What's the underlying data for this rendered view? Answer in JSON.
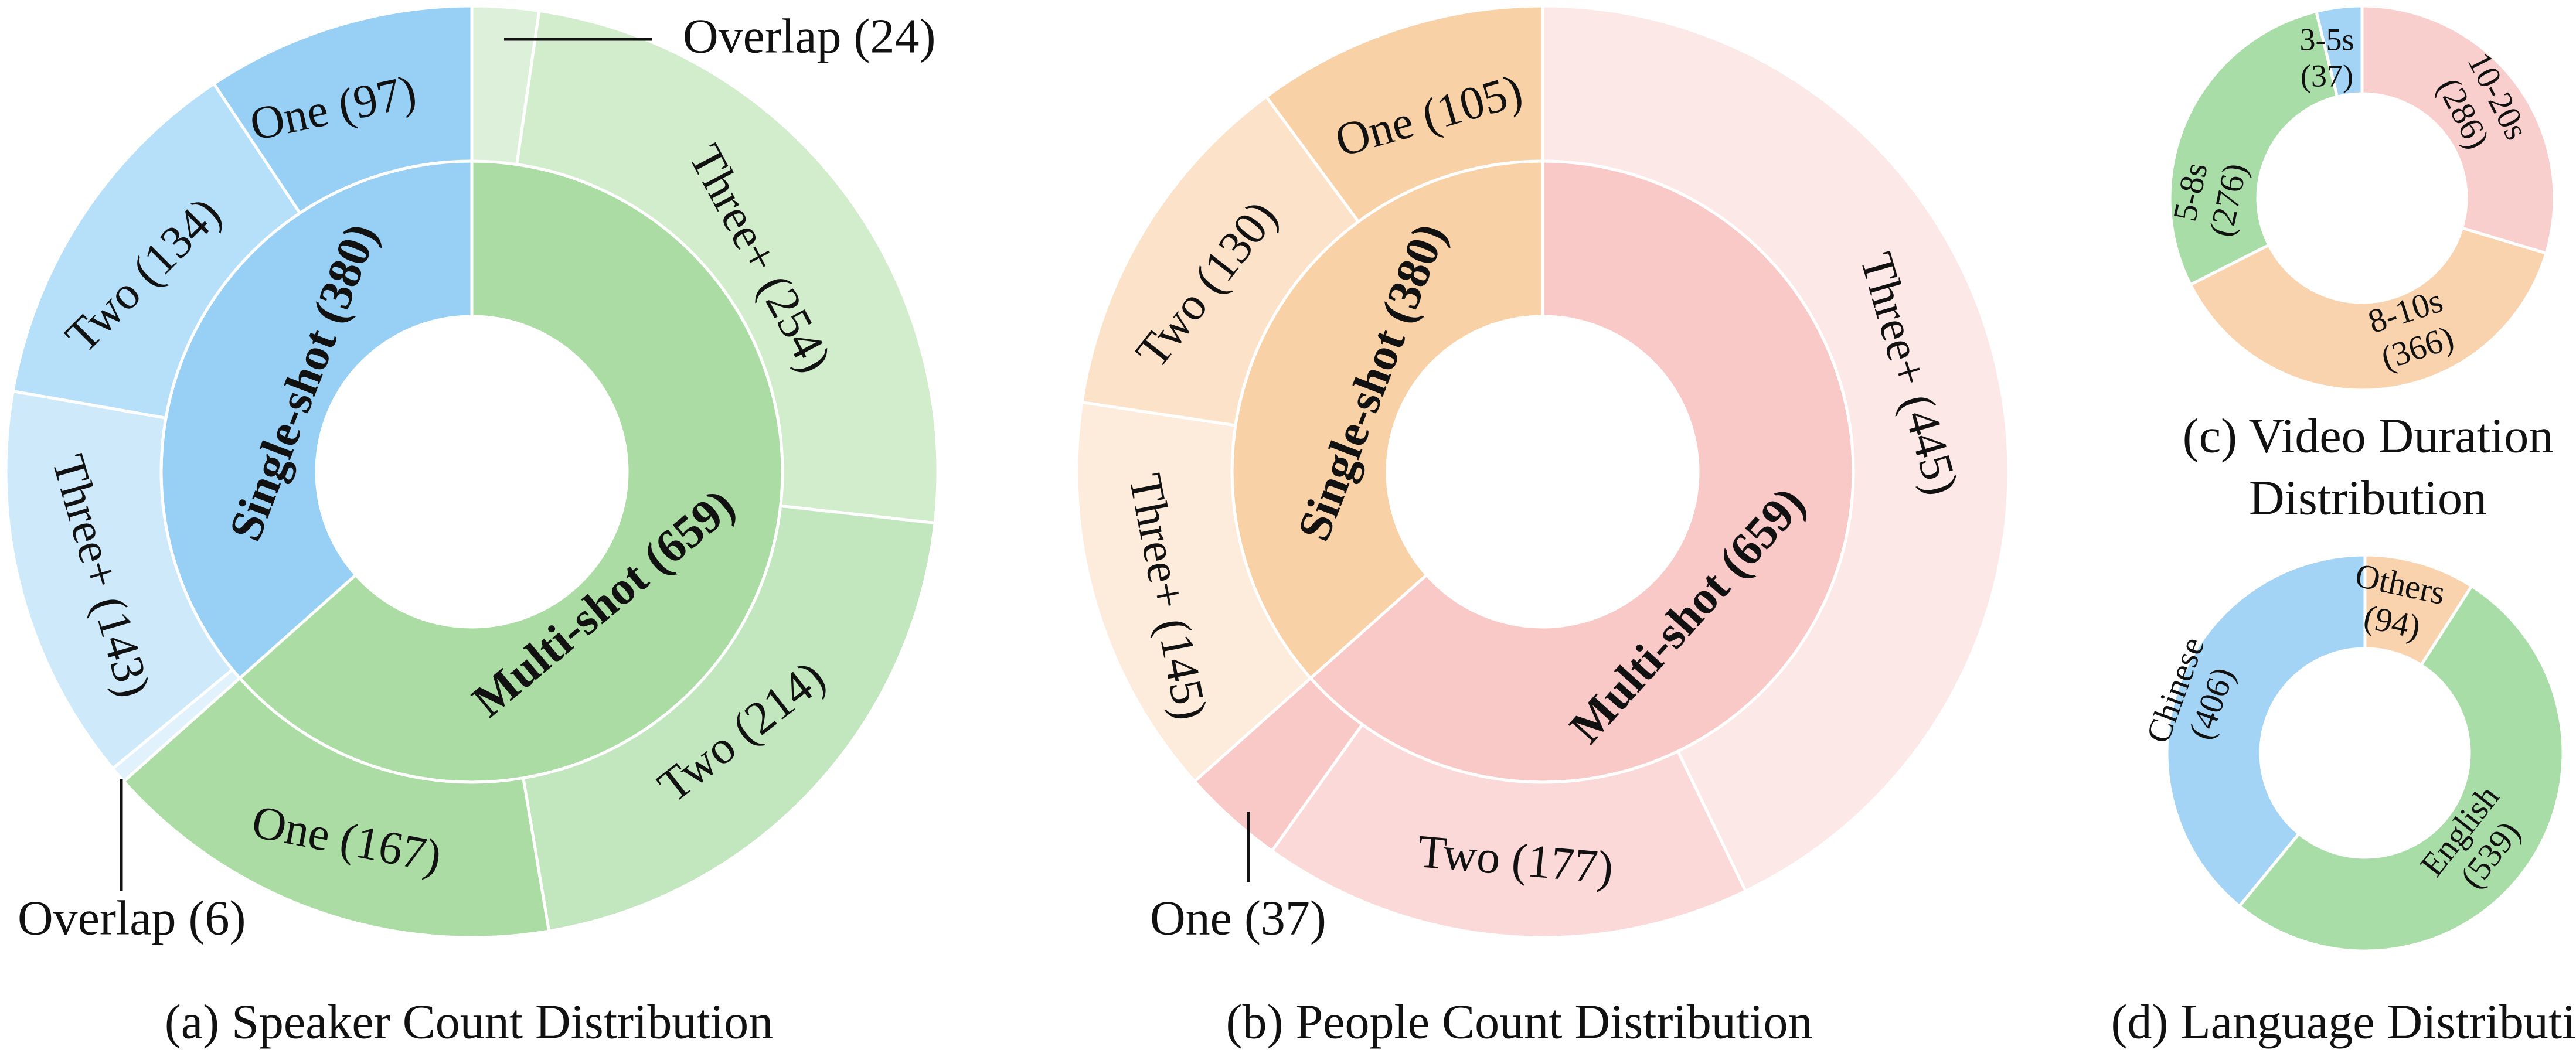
{
  "colors": {
    "single_blue": "#98d0f5",
    "multi_green": "#aadca3",
    "single_orange": "#f9d1a7",
    "multi_pink": "#f8c9c6",
    "short_blue": "#a3d4f6",
    "mid_green": "#a9dda7",
    "long_orange": "#f9d3ae",
    "longest_pink": "#f9cfcd",
    "others_orange": "#f9d3ae"
  },
  "chart_data": [
    {
      "id": "a",
      "type": "sunburst",
      "title": "(a) Speaker Count Distribution",
      "inner": [
        {
          "label": "Single-shot (380)",
          "value": 380,
          "color": "#98d0f5"
        },
        {
          "label": "Multi-shot (659)",
          "value": 659,
          "color": "#aadca3"
        }
      ],
      "outer": [
        {
          "label": "Overlap (24)",
          "value": 24,
          "color": "#ddf1da",
          "group": "Multi-shot"
        },
        {
          "label": "Three+ (254)",
          "value": 254,
          "color": "#d1edcc",
          "group": "Multi-shot"
        },
        {
          "label": "Two (214)",
          "value": 214,
          "color": "#c2e6bd",
          "group": "Multi-shot"
        },
        {
          "label": "One (167)",
          "value": 167,
          "color": "#aadca3",
          "group": "Multi-shot"
        },
        {
          "label": "Overlap (6)",
          "value": 6,
          "color": "#e2f2fc",
          "group": "Single-shot"
        },
        {
          "label": "Three+ (143)",
          "value": 143,
          "color": "#cde9fa",
          "group": "Single-shot"
        },
        {
          "label": "Two (134)",
          "value": 134,
          "color": "#b6dff9",
          "group": "Single-shot"
        },
        {
          "label": "One (97)",
          "value": 97,
          "color": "#98d0f5",
          "group": "Single-shot"
        }
      ]
    },
    {
      "id": "b",
      "type": "sunburst",
      "title": "(b) People Count Distribution",
      "inner": [
        {
          "label": "Single-shot (380)",
          "value": 380,
          "color": "#f9d1a7"
        },
        {
          "label": "Multi-shot (659)",
          "value": 659,
          "color": "#f8c9c6"
        }
      ],
      "outer": [
        {
          "label": "Three+ (445)",
          "value": 445,
          "color": "#fde8e8",
          "group": "Multi-shot"
        },
        {
          "label": "Two (177)",
          "value": 177,
          "color": "#fad9d8",
          "group": "Multi-shot"
        },
        {
          "label": "One (37)",
          "value": 37,
          "color": "#f8c9c6",
          "group": "Multi-shot"
        },
        {
          "label": "Three+ (145)",
          "value": 145,
          "color": "#fdebdb",
          "group": "Single-shot"
        },
        {
          "label": "Two (130)",
          "value": 130,
          "color": "#fce2c9",
          "group": "Single-shot"
        },
        {
          "label": "One (105)",
          "value": 105,
          "color": "#f9d1a7",
          "group": "Single-shot"
        }
      ]
    },
    {
      "id": "c",
      "type": "donut",
      "title_line1": "(c) Video Duration",
      "title_line2": "Distribution",
      "slices": [
        {
          "label": "10-20s",
          "count": "(286)",
          "value": 286,
          "color": "#f9cfcd"
        },
        {
          "label": "8-10s",
          "count": "(366)",
          "value": 366,
          "color": "#f9d3ae"
        },
        {
          "label": "5-8s",
          "count": "(276)",
          "value": 276,
          "color": "#a9dda7"
        },
        {
          "label": "3-5s",
          "count": "(37)",
          "value": 37,
          "color": "#a3d4f6"
        }
      ]
    },
    {
      "id": "d",
      "type": "donut",
      "title": "(d) Language Distribution",
      "slices": [
        {
          "label": "Others",
          "count": "(94)",
          "value": 94,
          "color": "#f9d3ae"
        },
        {
          "label": "English",
          "count": "(539)",
          "value": 539,
          "color": "#a9dda7"
        },
        {
          "label": "Chinese",
          "count": "(406)",
          "value": 406,
          "color": "#a3d4f6"
        }
      ]
    }
  ]
}
